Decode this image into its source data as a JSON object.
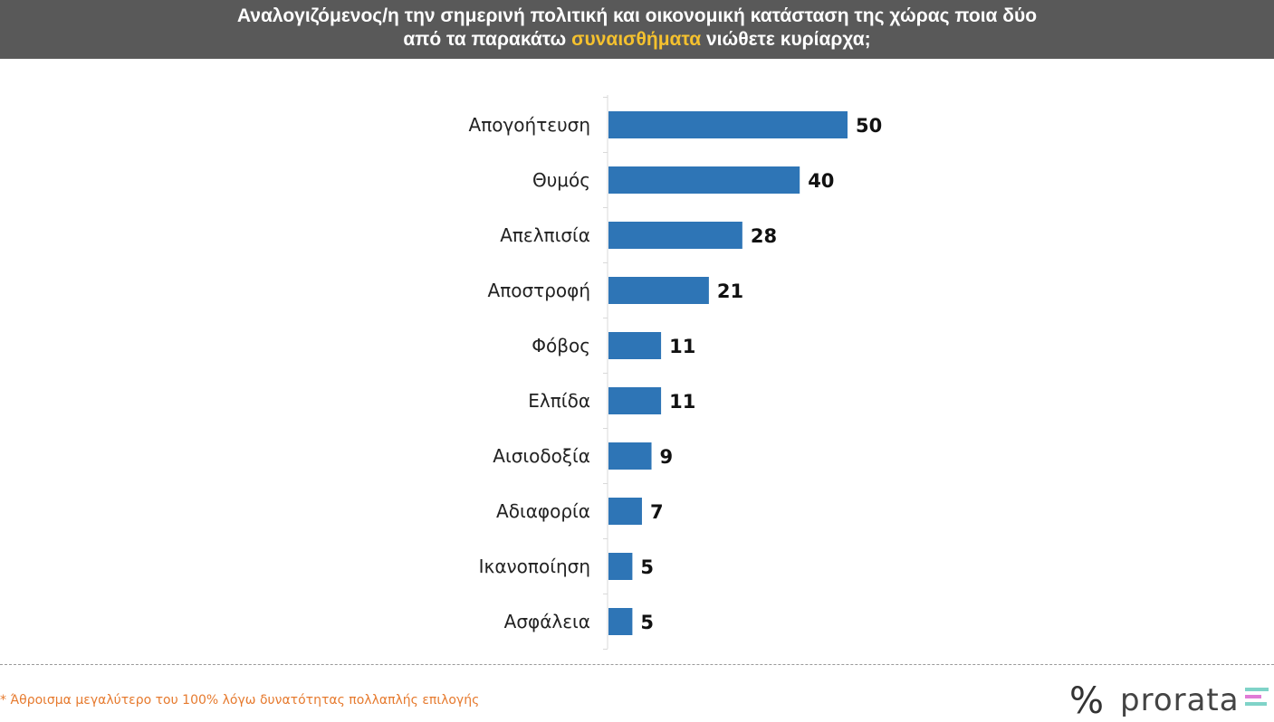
{
  "header": {
    "line1": "Αναλογιζόμενος/η την σημερινή πολιτική και οικονομική κατάσταση της χώρας ποια δύο",
    "line2_pre": "από τα παρακάτω ",
    "line2_highlight": "συναισθήματα",
    "line2_post": " νιώθετε κυρίαρχα;"
  },
  "chart_data": {
    "type": "bar",
    "orientation": "horizontal",
    "categories": [
      "Απογοήτευση",
      "Θυμός",
      "Απελπισία",
      "Αποστροφή",
      "Φόβος",
      "Ελπίδα",
      "Αισιοδοξία",
      "Αδιαφορία",
      "Ικανοποίηση",
      "Ασφάλεια"
    ],
    "values": [
      50,
      40,
      28,
      21,
      11,
      11,
      9,
      7,
      5,
      5
    ],
    "xlim": [
      0,
      50
    ],
    "grid": false,
    "bar_color": "#2e75b6"
  },
  "footnote": "* Άθροισμα μεγαλύτερο του 100% λόγω δυνατότητας πολλαπλής επιλογής",
  "logo": {
    "symbol": "%",
    "brand": "prorata"
  },
  "colors": {
    "header_bg": "#595959",
    "highlight": "#f5c12e",
    "footnote": "#e67a2e",
    "bar": "#2e75b6"
  }
}
